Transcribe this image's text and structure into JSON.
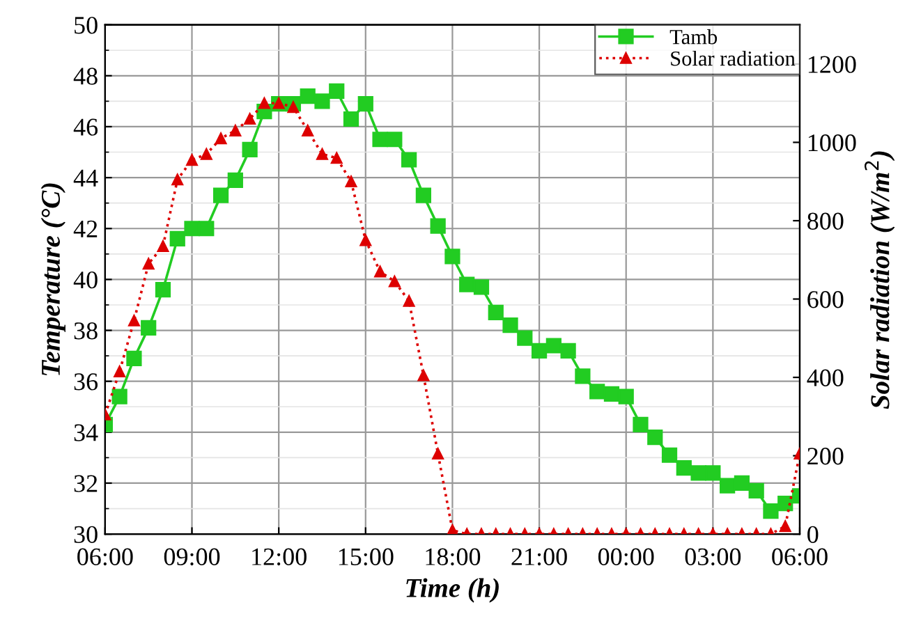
{
  "chart_data": {
    "type": "line",
    "xlabel": "Time (h)",
    "ylabel": "Temperature (°C)",
    "y2label": "Solar radiation (W/m$^{2}$)",
    "categories": [
      "06:00",
      null,
      null,
      null,
      null,
      null,
      "09:00",
      null,
      null,
      null,
      null,
      null,
      "12:00",
      null,
      null,
      null,
      null,
      null,
      "15:00",
      null,
      null,
      null,
      null,
      null,
      "18:00",
      null,
      null,
      null,
      null,
      null,
      "21:00",
      null,
      null,
      null,
      null,
      null,
      "00:00",
      null,
      null,
      null,
      null,
      null,
      "03:00",
      null,
      null,
      null,
      null,
      null,
      "06:00"
    ],
    "series": [
      {
        "name": "Tamb",
        "color": "#22cc22",
        "marker": "square",
        "line_style": "solid",
        "values": [
          34.3,
          35.4,
          36.9,
          38.1,
          39.6,
          41.6,
          42.0,
          42.0,
          43.3,
          43.9,
          45.1,
          46.6,
          46.9,
          46.9,
          47.2,
          47.0,
          47.4,
          46.3,
          46.9,
          45.5,
          45.5,
          44.7,
          43.3,
          42.1,
          40.9,
          39.8,
          39.7,
          38.7,
          38.2,
          37.7,
          37.2,
          37.4,
          37.2,
          36.2,
          35.6,
          35.5,
          35.4,
          34.3,
          33.8,
          33.1,
          32.6,
          32.4,
          32.4,
          31.9,
          32.0,
          31.7,
          30.9,
          31.2,
          31.5
        ]
      },
      {
        "name": "Solar radiation",
        "color": "#dd0000",
        "marker": "triangle",
        "line_style": "dotted",
        "axis": "y2",
        "values": [
          305,
          415,
          545,
          690,
          735,
          905,
          955,
          970,
          1010,
          1030,
          1060,
          1100,
          1100,
          1090,
          1030,
          970,
          960,
          900,
          750,
          670,
          645,
          595,
          405,
          205,
          10,
          0,
          0,
          0,
          0,
          0,
          0,
          0,
          0,
          0,
          0,
          0,
          0,
          0,
          0,
          0,
          0,
          0,
          0,
          0,
          0,
          0,
          0,
          20,
          205
        ]
      }
    ],
    "ylim": [
      30,
      50
    ],
    "yticks": [
      30,
      32,
      34,
      36,
      38,
      40,
      42,
      44,
      46,
      48,
      50
    ],
    "y2lim": [
      0,
      1300
    ],
    "y2ticks": [
      0,
      200,
      400,
      600,
      800,
      1000,
      1200
    ],
    "grid": true,
    "legend": "top right"
  }
}
